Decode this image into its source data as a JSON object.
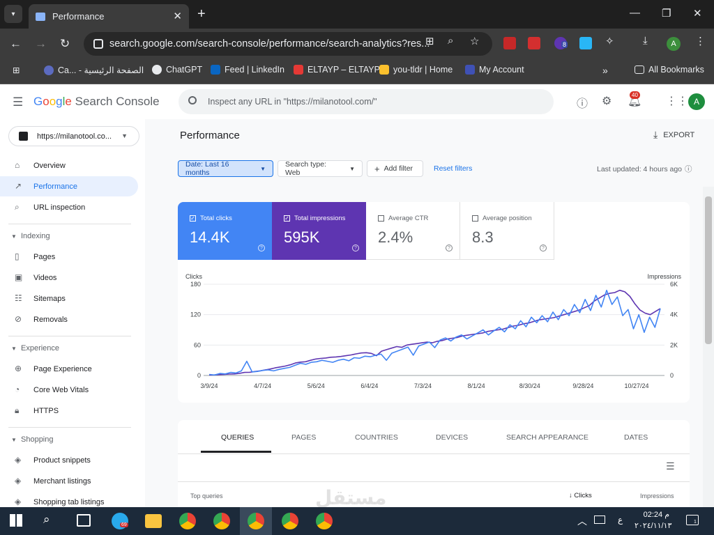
{
  "browser": {
    "tab_title": "Performance",
    "url": "search.google.com/search-console/performance/search-analytics?res...",
    "bookmarks": [
      "Ca... - الصفحة الرئيسية",
      "ChatGPT",
      "Feed | LinkedIn",
      "ELTAYP – ELTAYP",
      "you-tldr | Home",
      "My Account"
    ],
    "all_bookmarks": "All Bookmarks",
    "profile_initial": "A",
    "ext_badge": "8"
  },
  "header": {
    "logo_google": "Google",
    "logo_product": "Search Console",
    "search_placeholder": "Inspect any URL in \"https://milanotool.com/\"",
    "notif_count": "40",
    "avatar": "A"
  },
  "sidebar": {
    "property": "https://milanotool.co...",
    "top": [
      {
        "label": "Overview",
        "icon": "home-icon"
      },
      {
        "label": "Performance",
        "icon": "trending-icon"
      },
      {
        "label": "URL inspection",
        "icon": "search-icon"
      }
    ],
    "indexing_title": "Indexing",
    "indexing": [
      {
        "label": "Pages",
        "icon": "pages-icon"
      },
      {
        "label": "Videos",
        "icon": "video-icon"
      },
      {
        "label": "Sitemaps",
        "icon": "sitemap-icon"
      },
      {
        "label": "Removals",
        "icon": "removals-icon"
      }
    ],
    "experience_title": "Experience",
    "experience": [
      {
        "label": "Page Experience",
        "icon": "plus-circle-icon"
      },
      {
        "label": "Core Web Vitals",
        "icon": "gauge-icon"
      },
      {
        "label": "HTTPS",
        "icon": "lock-icon"
      }
    ],
    "shopping_title": "Shopping",
    "shopping": [
      {
        "label": "Product snippets",
        "icon": "layers-icon"
      },
      {
        "label": "Merchant listings",
        "icon": "layers-icon"
      },
      {
        "label": "Shopping tab listings",
        "icon": "layers-icon"
      }
    ]
  },
  "main": {
    "title": "Performance",
    "export": "EXPORT",
    "filters": {
      "date": "Date: Last 16 months",
      "search_type": "Search type: Web",
      "add_filter": "Add filter",
      "reset": "Reset filters",
      "last_updated": "Last updated: 4 hours ago"
    },
    "metrics": [
      {
        "label": "Total clicks",
        "value": "14.4K",
        "checked": true,
        "color": "#4285f4"
      },
      {
        "label": "Total impressions",
        "value": "595K",
        "checked": true,
        "color": "#5e35b1"
      },
      {
        "label": "Average CTR",
        "value": "2.4%",
        "checked": false,
        "color": "#ffffff"
      },
      {
        "label": "Average position",
        "value": "8.3",
        "checked": false,
        "color": "#ffffff"
      }
    ],
    "tabs": [
      "QUERIES",
      "PAGES",
      "COUNTRIES",
      "DEVICES",
      "SEARCH APPEARANCE",
      "DATES"
    ],
    "table_headers": {
      "top_queries": "Top queries",
      "clicks": "Clicks",
      "impressions": "Impressions"
    }
  },
  "chart_data": {
    "type": "line",
    "ylabel_left": "Clicks",
    "ylabel_right": "Impressions",
    "y_left_ticks": [
      "0",
      "60",
      "120",
      "180"
    ],
    "y_right_ticks": [
      "0",
      "2K",
      "4K",
      "6K"
    ],
    "ylim_left": [
      0,
      180
    ],
    "ylim_right": [
      0,
      6000
    ],
    "x_ticks": [
      "3/9/24",
      "4/7/24",
      "5/6/24",
      "6/4/24",
      "7/3/24",
      "8/1/24",
      "8/30/24",
      "9/28/24",
      "10/27/24"
    ],
    "series": [
      {
        "name": "Clicks",
        "color": "#4285f4",
        "values": [
          2,
          1,
          4,
          3,
          6,
          5,
          9,
          28,
          7,
          8,
          10,
          11,
          9,
          12,
          14,
          16,
          20,
          24,
          22,
          26,
          27,
          30,
          28,
          26,
          30,
          32,
          29,
          35,
          34,
          38,
          37,
          40,
          42,
          30,
          44,
          48,
          52,
          56,
          40,
          58,
          62,
          66,
          55,
          70,
          74,
          68,
          76,
          80,
          72,
          78,
          84,
          90,
          80,
          88,
          95,
          86,
          100,
          92,
          108,
          96,
          115,
          104,
          118,
          106,
          125,
          110,
          130,
          118,
          140,
          124,
          150,
          128,
          158,
          135,
          168,
          140,
          155,
          118,
          130,
          92,
          120,
          85,
          115,
          95,
          132
        ]
      },
      {
        "name": "Impressions",
        "color": "#5e35b1",
        "values": [
          30,
          35,
          60,
          70,
          90,
          100,
          140,
          200,
          210,
          260,
          300,
          360,
          420,
          500,
          560,
          620,
          700,
          820,
          880,
          900,
          1000,
          1080,
          1120,
          1150,
          1200,
          1220,
          1250,
          1300,
          1350,
          1420,
          1480,
          1500,
          1450,
          1300,
          1600,
          1700,
          1800,
          1900,
          1850,
          2000,
          2050,
          2100,
          2150,
          2200,
          2150,
          2250,
          2300,
          2400,
          2450,
          2500,
          2600,
          2650,
          2700,
          2750,
          2800,
          2900,
          2950,
          3000,
          3050,
          3150,
          3250,
          3300,
          3400,
          3450,
          3550,
          3650,
          3700,
          3750,
          3800,
          3900,
          4000,
          4100,
          4200,
          4300,
          4450,
          4600,
          4900,
          5100,
          5300,
          5400,
          5450,
          5600,
          5500,
          5200,
          4700,
          4300,
          4100,
          4000,
          4200,
          4400
        ]
      }
    ]
  },
  "taskbar": {
    "time": "02:24 م",
    "date": "٢٠٢٤/١١/١٣",
    "telegram_badge": "69",
    "lang": "ع",
    "notif": "1"
  }
}
